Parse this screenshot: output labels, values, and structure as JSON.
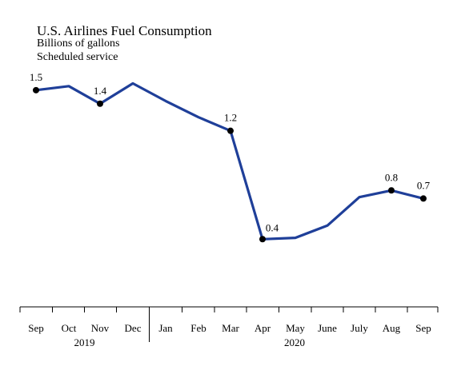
{
  "chart_data": {
    "type": "line",
    "title": "U.S. Airlines Fuel Consumption",
    "subtitle": [
      "Billions of gallons",
      "Scheduled service"
    ],
    "x": [
      "Sep",
      "Oct",
      "Nov",
      "Dec",
      "Jan",
      "Feb",
      "Mar",
      "Apr",
      "May",
      "June",
      "July",
      "Aug",
      "Sep"
    ],
    "years": [
      {
        "label": "2019",
        "from_index": 0,
        "to_index": 3
      },
      {
        "label": "2020",
        "from_index": 4,
        "to_index": 12
      }
    ],
    "series": [
      {
        "values": [
          1.5,
          1.53,
          1.4,
          1.55,
          1.42,
          1.3,
          1.2,
          0.4,
          0.41,
          0.5,
          0.71,
          0.76,
          0.7
        ],
        "color": "#1f3f99"
      }
    ],
    "data_labels": [
      {
        "index": 0,
        "text": "1.5"
      },
      {
        "index": 2,
        "text": "1.4"
      },
      {
        "index": 6,
        "text": "1.2"
      },
      {
        "index": 7,
        "text": "0.4"
      },
      {
        "index": 11,
        "text": "0.8"
      },
      {
        "index": 12,
        "text": "0.7"
      }
    ],
    "ylim": [
      -0.1,
      1.8
    ],
    "grid": false
  }
}
